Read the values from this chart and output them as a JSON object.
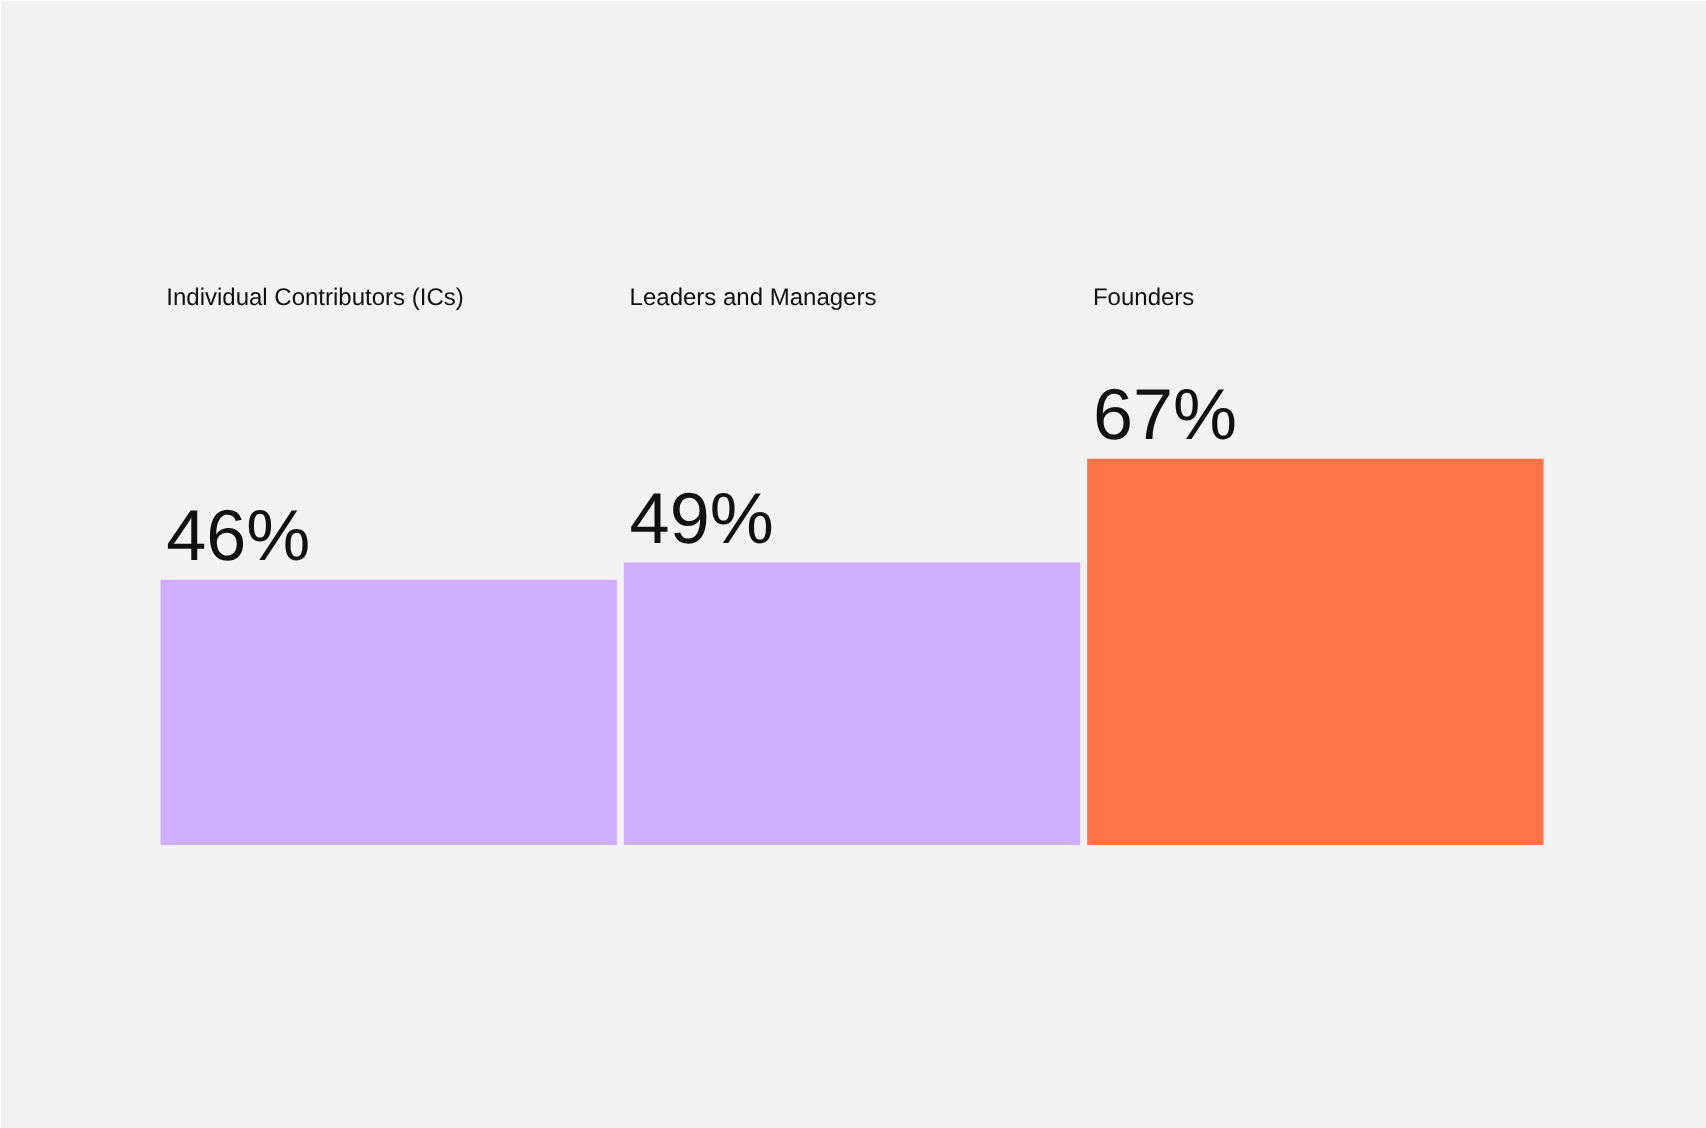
{
  "chart_data": {
    "type": "bar",
    "categories": [
      "Individual Contributors (ICs)",
      "Leaders and Managers",
      "Founders"
    ],
    "values": [
      46,
      49,
      67
    ],
    "colors": [
      "#cfaeff",
      "#cfaeff",
      "#ff7448"
    ],
    "value_labels": [
      "46%",
      "49%",
      "67%"
    ]
  }
}
